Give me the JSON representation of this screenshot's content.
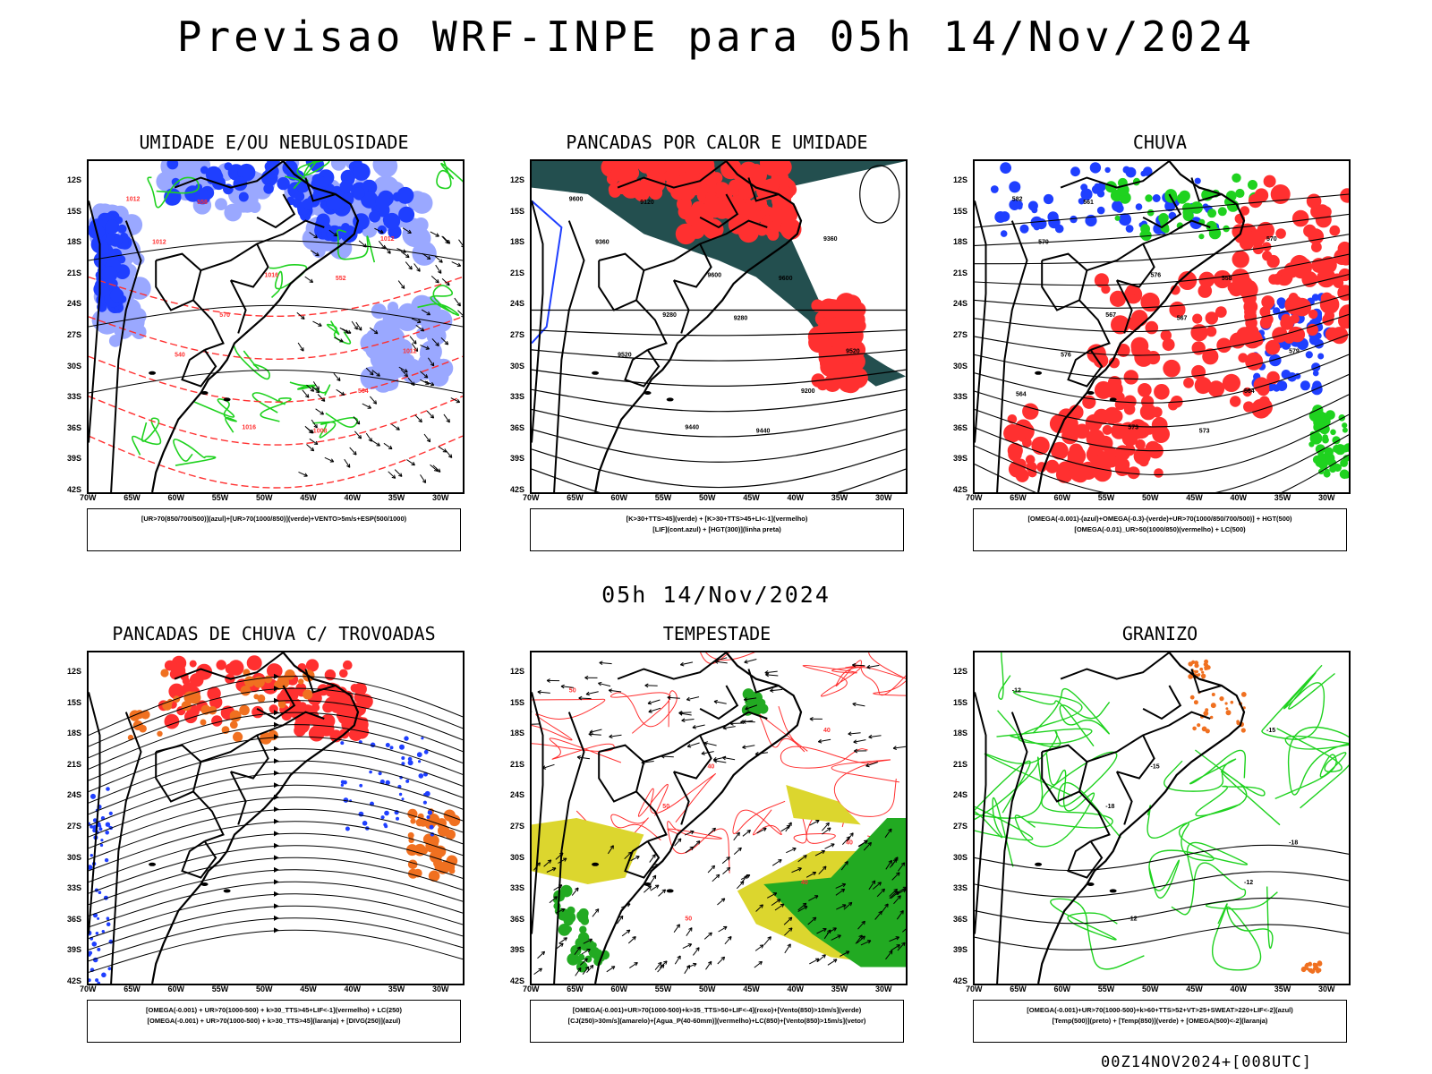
{
  "title": "Previsao WRF-INPE  para 05h 14/Nov/2024",
  "subtitle": "05h 14/Nov/2024",
  "footer": "00Z14NOV2024+[008UTC]",
  "axes": {
    "lat_labels": [
      "12S",
      "15S",
      "18S",
      "21S",
      "24S",
      "27S",
      "30S",
      "33S",
      "36S",
      "39S",
      "42S"
    ],
    "lon_labels": [
      "70W",
      "65W",
      "60W",
      "55W",
      "50W",
      "45W",
      "40W",
      "35W",
      "30W"
    ]
  },
  "colors": {
    "blue": "#1f3fff",
    "light_blue": "#9aa8ff",
    "green": "#1fd21f",
    "red": "#ff3030",
    "dark_teal": "#234f4f",
    "orange": "#f07020",
    "yellow": "#dcd62e",
    "black": "#000000"
  },
  "panels": [
    {
      "id": "umidade",
      "title": "UMIDADE E/OU NEBULOSIDADE",
      "legend": [
        "[UR>70(850/700/500)](azul)+[UR>70(1000/850)](verde)+VENTO>5m/s+ESP(500/1000)"
      ],
      "contour_labels": [
        "1012",
        "1016",
        "1012",
        "1016",
        "1012",
        "570",
        "564",
        "558",
        "552",
        "540",
        "1008",
        "1012"
      ]
    },
    {
      "id": "pancadas-calor",
      "title": "PANCADAS POR CALOR E UMIDADE",
      "legend": [
        "[K>30+TTS>45](verde) + [K>30+TTS>45+LI<-1](vermelho)",
        "[LIF](cont.azul) + [HGT(300)](linha preta)"
      ],
      "contour_labels": [
        "9600",
        "9600",
        "9520",
        "9440",
        "9360",
        "9280",
        "9200",
        "9120",
        "9600",
        "9520",
        "9440",
        "9360",
        "9280"
      ]
    },
    {
      "id": "chuva",
      "title": "CHUVA",
      "legend": [
        "[OMEGA(-0.001)-(azul)+OMEGA(-0.3)-(verde)+UR>70(1000/850/700/500)] + HGT(500)",
        "[OMEGA(-0.01)_UR>50(1000/850)(vermelho) + LC(500)"
      ],
      "contour_labels": [
        "582",
        "576",
        "579",
        "573",
        "570",
        "567",
        "564",
        "561",
        "558",
        "576",
        "573",
        "570",
        "567",
        "564"
      ]
    },
    {
      "id": "pancadas-trovoadas",
      "title": "PANCADAS DE CHUVA C/ TROVOADAS",
      "legend": [
        "[OMEGA(-0.001) + UR>70(1000-500) + k>30_TTS>45+LIF<-1](vermelho) + LC(250)",
        "[OMEGA(-0.001) + UR>70(1000-500) + k>30_TTS>45](laranja) + [DIVG(250)](azul)"
      ],
      "contour_labels": []
    },
    {
      "id": "tempestade",
      "title": "TEMPESTADE",
      "legend": [
        "[OMEGA(-0.001)+UR>70(1000-500)+k>35_TTS>50+LIF<-4](roxo)+[Vento(850)>10m/s](verde)",
        "[CJ(250)>30m/s](amarelo)+[Agua_P(40-60mm)](vermelho)+LC(850)+[Vento(850)>15m/s](vetor)"
      ],
      "contour_labels": [
        "50",
        "40",
        "40",
        "50",
        "40",
        "50",
        "40"
      ]
    },
    {
      "id": "granizo",
      "title": "GRANIZO",
      "legend": [
        "[OMEGA(-0.001)+UR>70(1000-500)+k>60+TTS>52+VT>25+SWEAT>220+LIF<-2](azul)",
        "[Temp(500)](preto) + [Temp(850)](verde) + [OMEGA(500)<-2](laranja)"
      ],
      "contour_labels": [
        "-12",
        "-15",
        "-18",
        "-12",
        "-15",
        "-18",
        "-12"
      ]
    }
  ]
}
